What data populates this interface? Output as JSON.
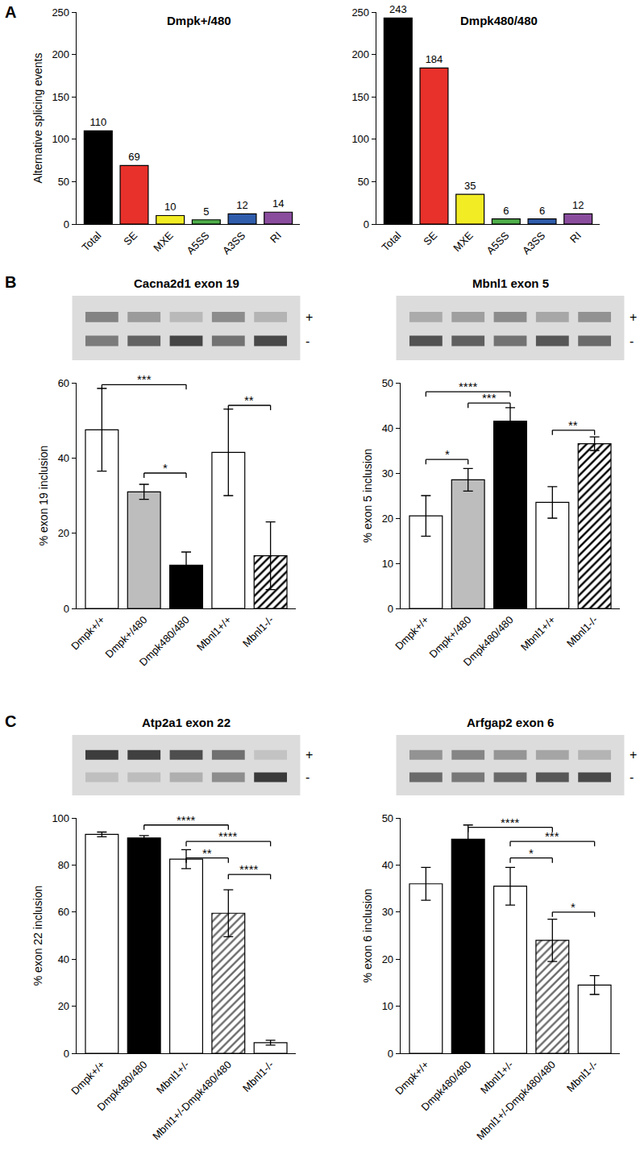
{
  "panel_labels": [
    "A",
    "B",
    "C"
  ],
  "chart_data": [
    {
      "type": "bar",
      "title": "Dmpk+/480",
      "y_label": "Alternative splicing events",
      "categories": [
        "Total",
        "SE",
        "MXE",
        "A5SS",
        "A3SS",
        "RI"
      ],
      "values": [
        110,
        69,
        10,
        5,
        12,
        14
      ],
      "colors": [
        "#000000",
        "#e8312a",
        "#f2ec25",
        "#4fae4a",
        "#2f5cab",
        "#8a4d9e"
      ],
      "ylim": [
        0,
        250
      ],
      "yticks": [
        0,
        50,
        100,
        150,
        200,
        250
      ],
      "data_labels": true
    },
    {
      "type": "bar",
      "title": "Dmpk480/480",
      "categories": [
        "Total",
        "SE",
        "MXE",
        "A5SS",
        "A3SS",
        "RI"
      ],
      "values": [
        243,
        184,
        35,
        6,
        6,
        12
      ],
      "colors": [
        "#000000",
        "#e8312a",
        "#f2ec25",
        "#4fae4a",
        "#2f5cab",
        "#8a4d9e"
      ],
      "ylim": [
        0,
        250
      ],
      "yticks": [
        0,
        50,
        100,
        150,
        200,
        250
      ],
      "data_labels": true
    },
    {
      "type": "bar",
      "title": "Cacna2d1 exon 19",
      "y_label": "% exon 19 inclusion",
      "gel_labels": [
        "+",
        "-"
      ],
      "categories": [
        "Dmpk+/+",
        "Dmpk+/480",
        "Dmpk480/480",
        "Mbnl1+/+",
        "Mbnl1-/-"
      ],
      "series": [
        {
          "marker": "solid",
          "values": [
            47.5,
            31,
            11.5,
            null,
            null
          ],
          "errors": [
            11,
            2,
            3.5,
            null,
            null
          ],
          "colors": [
            "#ffffff",
            "#bdbdbd",
            "#000000",
            null,
            null
          ]
        },
        {
          "marker": "hatched",
          "values": [
            null,
            null,
            null,
            41.5,
            14
          ],
          "errors": [
            null,
            null,
            null,
            11.5,
            9
          ],
          "colors": [
            null,
            null,
            null,
            "#ffffff",
            "#000000"
          ]
        }
      ],
      "ylim": [
        0,
        60
      ],
      "yticks": [
        0,
        20,
        40,
        60
      ],
      "annotations": [
        {
          "from": 0,
          "to": 2,
          "y": 59.5,
          "text": "***"
        },
        {
          "from": 1,
          "to": 2,
          "y": 36,
          "text": "*"
        },
        {
          "from": 3,
          "to": 4,
          "y": 54,
          "text": "**"
        }
      ]
    },
    {
      "type": "bar",
      "title": "Mbnl1 exon 5",
      "y_label": "% exon 5 inclusion",
      "gel_labels": [
        "+",
        "-"
      ],
      "categories": [
        "Dmpk+/+",
        "Dmpk+/480",
        "Dmpk480/480",
        "Mbnl1+/+",
        "Mbnl1-/-"
      ],
      "series": [
        {
          "marker": "solid",
          "values": [
            20.5,
            28.5,
            41.5,
            null,
            null
          ],
          "errors": [
            4.5,
            2.5,
            3,
            null,
            null
          ],
          "colors": [
            "#ffffff",
            "#bdbdbd",
            "#000000",
            null,
            null
          ]
        },
        {
          "marker": "hatched",
          "values": [
            null,
            null,
            null,
            23.5,
            36.5
          ],
          "errors": [
            null,
            null,
            null,
            3.5,
            1.5
          ],
          "colors": [
            null,
            null,
            null,
            "#ffffff",
            "#000000"
          ]
        }
      ],
      "ylim": [
        0,
        50
      ],
      "yticks": [
        0,
        10,
        20,
        30,
        40,
        50
      ],
      "annotations": [
        {
          "from": 0,
          "to": 2,
          "y": 48,
          "text": "****"
        },
        {
          "from": 1,
          "to": 2,
          "y": 45.5,
          "text": "***"
        },
        {
          "from": 0,
          "to": 1,
          "y": 33,
          "text": "*"
        },
        {
          "from": 3,
          "to": 4,
          "y": 39.5,
          "text": "**"
        }
      ]
    },
    {
      "type": "bar",
      "title": "Atp2a1 exon 22",
      "y_label": "% exon 22 inclusion",
      "gel_labels": [
        "+",
        "-"
      ],
      "categories": [
        "Dmpk+/+",
        "Dmpk480/480",
        "Mbnl1+/-",
        "Mbnl1+/-Dmpk480/480",
        "Mbnl1-/-"
      ],
      "series": [
        {
          "marker": "solid",
          "values": [
            93,
            91.5,
            null,
            null,
            null
          ],
          "errors": [
            1,
            1,
            null,
            null,
            null
          ],
          "colors": [
            "#ffffff",
            "#000000",
            null,
            null,
            null
          ]
        },
        {
          "marker": "hatched",
          "values": [
            null,
            null,
            82.5,
            59.5,
            4.5
          ],
          "errors": [
            null,
            null,
            4,
            10,
            1
          ],
          "colors": [
            null,
            null,
            "#ffffff",
            "#6e6e6e",
            "#ffffff"
          ]
        }
      ],
      "ylim": [
        0,
        100
      ],
      "yticks": [
        0,
        20,
        40,
        60,
        80,
        100
      ],
      "annotations": [
        {
          "from": 1,
          "to": 3,
          "y": 97,
          "text": "****"
        },
        {
          "from": 2,
          "to": 4,
          "y": 90,
          "text": "****"
        },
        {
          "from": 2,
          "to": 3,
          "y": 83,
          "text": "**"
        },
        {
          "from": 3,
          "to": 4,
          "y": 76,
          "text": "****"
        }
      ]
    },
    {
      "type": "bar",
      "title": "Arfgap2 exon 6",
      "y_label": "% exon 6 inclusion",
      "gel_labels": [
        "+",
        "-"
      ],
      "categories": [
        "Dmpk+/+",
        "Dmpk480/480",
        "Mbnl1+/-",
        "Mbnl1+/-Dmpk480/480",
        "Mbnl1-/-"
      ],
      "series": [
        {
          "marker": "solid",
          "values": [
            36,
            45.5,
            null,
            null,
            null
          ],
          "errors": [
            3.5,
            3,
            null,
            null,
            null
          ],
          "colors": [
            "#ffffff",
            "#000000",
            null,
            null,
            null
          ]
        },
        {
          "marker": "hatched",
          "values": [
            null,
            null,
            35.5,
            24,
            14.5
          ],
          "errors": [
            null,
            null,
            4,
            4.5,
            2
          ],
          "colors": [
            null,
            null,
            "#ffffff",
            "#6e6e6e",
            "#ffffff"
          ]
        }
      ],
      "ylim": [
        0,
        50
      ],
      "yticks": [
        0,
        10,
        20,
        30,
        40,
        50
      ],
      "annotations": [
        {
          "from": 1,
          "to": 3,
          "y": 48,
          "text": "****"
        },
        {
          "from": 2,
          "to": 4,
          "y": 45,
          "text": "***"
        },
        {
          "from": 2,
          "to": 3,
          "y": 41.5,
          "text": "*"
        },
        {
          "from": 3,
          "to": 4,
          "y": 30,
          "text": "*"
        }
      ]
    }
  ]
}
